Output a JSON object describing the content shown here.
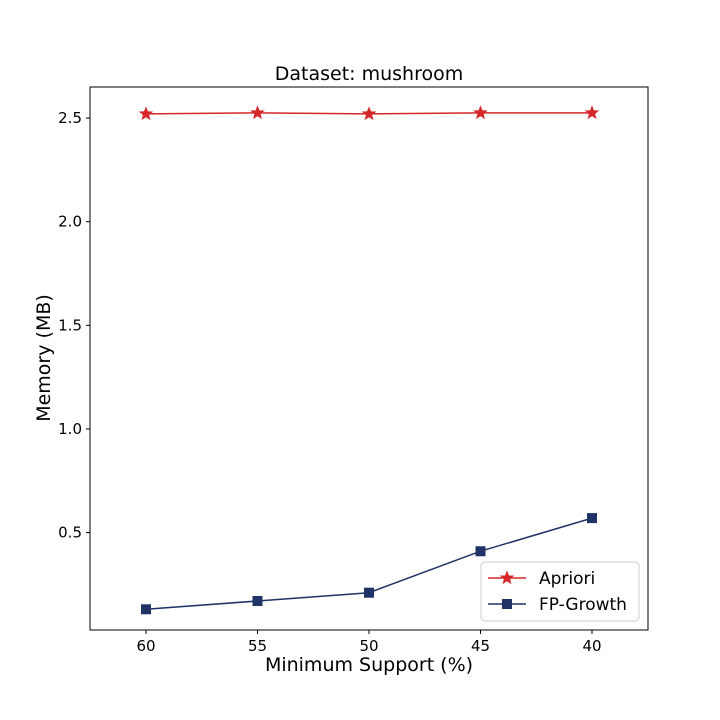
{
  "chart_data": {
    "type": "line",
    "title": "Dataset: mushroom",
    "xlabel": "Minimum Support (%)",
    "ylabel": "Memory (MB)",
    "x": [
      "60",
      "55",
      "50",
      "45",
      "40"
    ],
    "yticks": [
      "0.5",
      "1.0",
      "1.5",
      "2.0",
      "2.5"
    ],
    "ylim": [
      0.03,
      2.65
    ],
    "grid": false,
    "legend_position": "bottom-right",
    "series": [
      {
        "name": "Apriori",
        "color": "#d62728",
        "marker": "star",
        "values": [
          2.52,
          2.525,
          2.52,
          2.525,
          2.525
        ]
      },
      {
        "name": "FP-Growth",
        "color": "#1f3366",
        "marker": "square",
        "values": [
          0.13,
          0.17,
          0.21,
          0.41,
          0.57
        ]
      }
    ]
  }
}
